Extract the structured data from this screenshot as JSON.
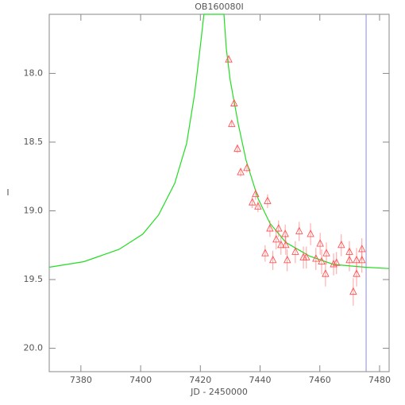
{
  "chart_data": {
    "type": "scatter",
    "title": "OB160080I",
    "x_label": "JD - 2450000",
    "y_label": "I",
    "xlim": [
      7369.4,
      7483.2
    ],
    "ylim": [
      20.17,
      17.57
    ],
    "xticks": [
      7380,
      7400,
      7420,
      7440,
      7460,
      7480
    ],
    "yticks": [
      {
        "value": 18.0,
        "label": "18.0"
      },
      {
        "value": 18.5,
        "label": "18.5"
      },
      {
        "value": 19.0,
        "label": "19.0"
      },
      {
        "value": 19.5,
        "label": "19.5"
      },
      {
        "value": 20.0,
        "label": "20.0"
      }
    ],
    "vline": 7475.5,
    "vline_color": "#8c8cd0",
    "series": [
      {
        "type": "line",
        "color": "#22dd22",
        "x": [
          7369.4,
          7381,
          7392.8,
          7400.7,
          7406,
          7411.4,
          7415.4,
          7418,
          7419.9,
          7421.2,
          7427.9,
          7428.7,
          7430,
          7432.7,
          7435.3,
          7439.3,
          7443.3,
          7448.6,
          7456.6,
          7464.6,
          7475.2,
          7483.2
        ],
        "values": [
          19.41,
          19.37,
          19.28,
          19.17,
          19.03,
          18.8,
          18.51,
          18.16,
          17.82,
          17.57,
          17.57,
          17.82,
          18.05,
          18.37,
          18.63,
          18.91,
          19.09,
          19.23,
          19.33,
          19.39,
          19.41,
          19.42
        ]
      },
      {
        "type": "scatter",
        "color": "#ff5555",
        "x": [
          7429.5,
          7431.3,
          7430.5,
          7432.4,
          7433.5,
          7435.6,
          7437.4,
          7438.5,
          7439.3,
          7442.5,
          7441.7,
          7443.3,
          7444.3,
          7445.4,
          7446.2,
          7447.0,
          7448.4,
          7448.6,
          7449.1,
          7451.8,
          7453.1,
          7454.5,
          7455.5,
          7456.9,
          7458.7,
          7460.1,
          7460.6,
          7461.9,
          7462.2,
          7464.6,
          7465.6,
          7467.2,
          7469.9,
          7469.9,
          7471.2,
          7472.3,
          7472.3,
          7474.1,
          7474.1
        ],
        "values": [
          17.9,
          18.22,
          18.37,
          18.55,
          18.72,
          18.69,
          18.94,
          18.88,
          18.97,
          18.93,
          19.31,
          19.13,
          19.36,
          19.21,
          19.13,
          19.25,
          19.17,
          19.25,
          19.36,
          19.3,
          19.15,
          19.34,
          19.34,
          19.17,
          19.35,
          19.24,
          19.37,
          19.46,
          19.31,
          19.39,
          19.38,
          19.25,
          19.3,
          19.36,
          19.59,
          19.46,
          19.36,
          19.28,
          19.36
        ],
        "errors": [
          0.02,
          0.02,
          0.02,
          0.03,
          0.03,
          0.03,
          0.04,
          0.04,
          0.04,
          0.05,
          0.06,
          0.06,
          0.07,
          0.07,
          0.06,
          0.07,
          0.07,
          0.07,
          0.08,
          0.08,
          0.07,
          0.08,
          0.08,
          0.08,
          0.08,
          0.08,
          0.09,
          0.09,
          0.08,
          0.08,
          0.08,
          0.08,
          0.08,
          0.08,
          0.1,
          0.09,
          0.09,
          0.08,
          0.09
        ]
      }
    ]
  }
}
